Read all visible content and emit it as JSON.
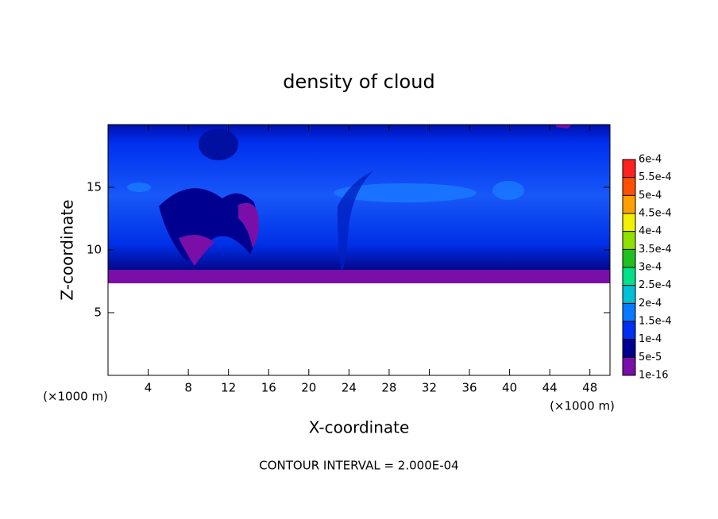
{
  "chart_data": {
    "type": "contour",
    "title": "density of cloud",
    "x_label": "X-coordinate",
    "y_label": "Z-coordinate",
    "x_unit_label": "(×1000 m)",
    "y_unit_label": "(×1000 m)",
    "note": "CONTOUR INTERVAL = 2.000E-04",
    "xlim": [
      0,
      50
    ],
    "ylim": [
      0,
      20
    ],
    "xticks": [
      4,
      8,
      12,
      16,
      20,
      24,
      28,
      32,
      36,
      40,
      44,
      48
    ],
    "yticks": [
      5,
      10,
      15
    ],
    "colorbar": {
      "levels": [
        {
          "value": 1e-16,
          "label": "1e-16"
        },
        {
          "value": 5e-05,
          "label": "5e-5"
        },
        {
          "value": 0.0001,
          "label": "1e-4"
        },
        {
          "value": 0.00015,
          "label": "1.5e-4"
        },
        {
          "value": 0.0002,
          "label": "2e-4"
        },
        {
          "value": 0.00025,
          "label": "2.5e-4"
        },
        {
          "value": 0.0003,
          "label": "3e-4"
        },
        {
          "value": 0.00035,
          "label": "3.5e-4"
        },
        {
          "value": 0.0004,
          "label": "4e-4"
        },
        {
          "value": 0.00045,
          "label": "4.5e-4"
        },
        {
          "value": 0.0005,
          "label": "5e-4"
        },
        {
          "value": 0.00055,
          "label": "5.5e-4"
        },
        {
          "value": 0.0006,
          "label": "6e-4"
        }
      ],
      "colors": [
        "#7a0ea8",
        "#000090",
        "#0030f0",
        "#0a78ff",
        "#00c0d8",
        "#00e088",
        "#20c020",
        "#90e000",
        "#f0f000",
        "#ffa000",
        "#ff5000",
        "#ff2020"
      ]
    }
  }
}
